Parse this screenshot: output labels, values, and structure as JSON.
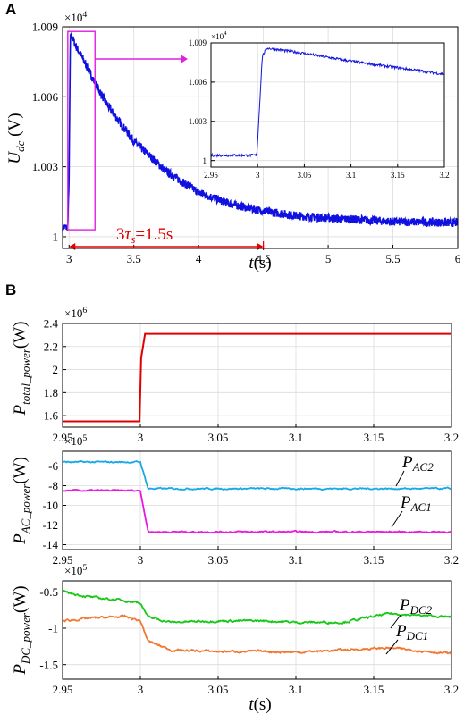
{
  "panels": {
    "a_label": "A",
    "b_label": "B"
  },
  "colors": {
    "udc": "#1010e0",
    "zoom_box": "#e020e0",
    "annotation": "#e00000",
    "total": "#e00000",
    "ac2": "#18a8e8",
    "ac1": "#e818e0",
    "dc2": "#18c818",
    "dc1": "#f07830"
  },
  "chart_data": [
    {
      "id": "A-main",
      "type": "line",
      "xlabel": "t(s)",
      "ylabel": "U_dc (V)",
      "exponent": "×10^4",
      "xlim": [
        2.95,
        6
      ],
      "ylim": [
        0.9995,
        1.009
      ],
      "xticks": [
        3,
        3.5,
        4,
        4.5,
        5,
        5.5,
        6
      ],
      "xtick_labels": [
        "3",
        "3.5",
        "4",
        "4.5",
        "5",
        "5.5",
        "6"
      ],
      "yticks": [
        1.0,
        1.003,
        1.006,
        1.009
      ],
      "ytick_labels": [
        "1",
        "1.003",
        "1.006",
        "1.009"
      ],
      "grid": true,
      "series": [
        {
          "x": [
            2.95,
            2.99,
            3.0,
            3.01,
            3.02,
            3.05,
            3.1,
            3.2,
            3.3,
            3.5,
            3.75,
            4.0,
            4.25,
            4.5,
            4.75,
            5.0,
            5.5,
            6.0
          ],
          "y": [
            1.0004,
            1.0004,
            1.0025,
            1.0085,
            1.0086,
            1.0082,
            1.0077,
            1.0066,
            1.0056,
            1.0041,
            1.0028,
            1.0019,
            1.0014,
            1.0011,
            1.0009,
            1.0008,
            1.00065,
            1.0006
          ]
        }
      ],
      "annotation": {
        "text_prefix": "3",
        "text_symbol": "τ",
        "text_sub": "s",
        "text_suffix": "=1.5s",
        "from_x": 3.0,
        "to_x": 4.5
      },
      "zoom_box": {
        "x": [
          2.99,
          3.2
        ],
        "y": [
          1.0003,
          1.0088
        ]
      }
    },
    {
      "id": "A-inset",
      "type": "line",
      "exponent": "×10^4",
      "xlim": [
        2.95,
        3.2
      ],
      "ylim": [
        0.9995,
        1.009
      ],
      "xticks": [
        2.95,
        3.0,
        3.05,
        3.1,
        3.15,
        3.2
      ],
      "xtick_labels": [
        "2.95",
        "3",
        "3.05",
        "3.1",
        "3.15",
        "3.2"
      ],
      "yticks": [
        1.0,
        1.003,
        1.006,
        1.009
      ],
      "ytick_labels": [
        "1",
        "1.003",
        "1.006",
        "1.009"
      ],
      "grid": true,
      "series": [
        {
          "x": [
            2.95,
            2.999,
            3.0,
            3.005,
            3.01,
            3.05,
            3.1,
            3.15,
            3.2
          ],
          "y": [
            1.0004,
            1.0004,
            1.0015,
            1.008,
            1.0086,
            1.0082,
            1.0076,
            1.0071,
            1.0066
          ]
        }
      ]
    },
    {
      "id": "B1",
      "type": "line",
      "ylabel_main": "P",
      "ylabel_sub": "total_power",
      "ylabel_unit": "(W)",
      "exponent": "×10^6",
      "xlim": [
        2.95,
        3.2
      ],
      "ylim": [
        1.5,
        2.4
      ],
      "xticks": [
        2.95,
        3.0,
        3.05,
        3.1,
        3.15,
        3.2
      ],
      "xtick_labels": [
        "2.95",
        "3",
        "3.05",
        "3.1",
        "3.15",
        "3.2"
      ],
      "yticks": [
        1.6,
        1.8,
        2.0,
        2.2,
        2.4
      ],
      "ytick_labels": [
        "1.6",
        "1.8",
        "2",
        "2.2",
        "2.4"
      ],
      "grid": true,
      "series": [
        {
          "x": [
            2.95,
            2.9995,
            3.0005,
            3.003,
            3.2
          ],
          "y": [
            1.55,
            1.55,
            2.1,
            2.31,
            2.31
          ]
        }
      ]
    },
    {
      "id": "B2",
      "type": "line",
      "ylabel_main": "P",
      "ylabel_sub": "AC_power",
      "ylabel_unit": "(W)",
      "exponent": "×10^5",
      "xlim": [
        2.95,
        3.2
      ],
      "ylim": [
        -14.5,
        -4.5
      ],
      "xticks": [
        2.95,
        3.0,
        3.05,
        3.1,
        3.15,
        3.2
      ],
      "xtick_labels": [
        "2.95",
        "3",
        "3.05",
        "3.1",
        "3.15",
        "3.2"
      ],
      "yticks": [
        -6,
        -8,
        -10,
        -12,
        -14
      ],
      "ytick_labels": [
        "-6",
        "-8",
        "-10",
        "-12",
        "-14"
      ],
      "grid": true,
      "series": [
        {
          "label_main": "P",
          "label_sub": "AC2",
          "x": [
            2.95,
            3.0,
            3.005,
            3.2
          ],
          "y": [
            -5.6,
            -5.6,
            -8.3,
            -8.3
          ]
        },
        {
          "label_main": "P",
          "label_sub": "AC1",
          "x": [
            2.95,
            3.0,
            3.005,
            3.2
          ],
          "y": [
            -8.5,
            -8.5,
            -12.7,
            -12.7
          ]
        }
      ]
    },
    {
      "id": "B3",
      "type": "line",
      "ylabel_main": "P",
      "ylabel_sub": "DC_power",
      "ylabel_unit": "(W)",
      "xlabel": "t(s)",
      "exponent": "×10^5",
      "xlim": [
        2.95,
        3.2
      ],
      "ylim": [
        -1.7,
        -0.35
      ],
      "xticks": [
        2.95,
        3.0,
        3.05,
        3.1,
        3.15,
        3.2
      ],
      "xtick_labels": [
        "2.95",
        "3",
        "3.05",
        "3.1",
        "3.15",
        "3.2"
      ],
      "yticks": [
        -0.5,
        -1.0,
        -1.5
      ],
      "ytick_labels": [
        "-0.5",
        "-1",
        "-1.5"
      ],
      "grid": true,
      "series": [
        {
          "label_main": "P",
          "label_sub": "DC2",
          "x": [
            2.95,
            2.97,
            2.99,
            3.0,
            3.005,
            3.02,
            3.05,
            3.08,
            3.1,
            3.13,
            3.16,
            3.2
          ],
          "y": [
            -0.5,
            -0.58,
            -0.62,
            -0.65,
            -0.85,
            -0.92,
            -0.9,
            -0.9,
            -0.92,
            -0.92,
            -0.8,
            -0.85
          ]
        },
        {
          "label_main": "P",
          "label_sub": "DC1",
          "x": [
            2.95,
            2.97,
            2.99,
            3.0,
            3.005,
            3.02,
            3.05,
            3.08,
            3.1,
            3.13,
            3.16,
            3.2
          ],
          "y": [
            -0.9,
            -0.86,
            -0.84,
            -0.9,
            -1.18,
            -1.3,
            -1.32,
            -1.32,
            -1.33,
            -1.3,
            -1.27,
            -1.35
          ]
        }
      ]
    }
  ]
}
